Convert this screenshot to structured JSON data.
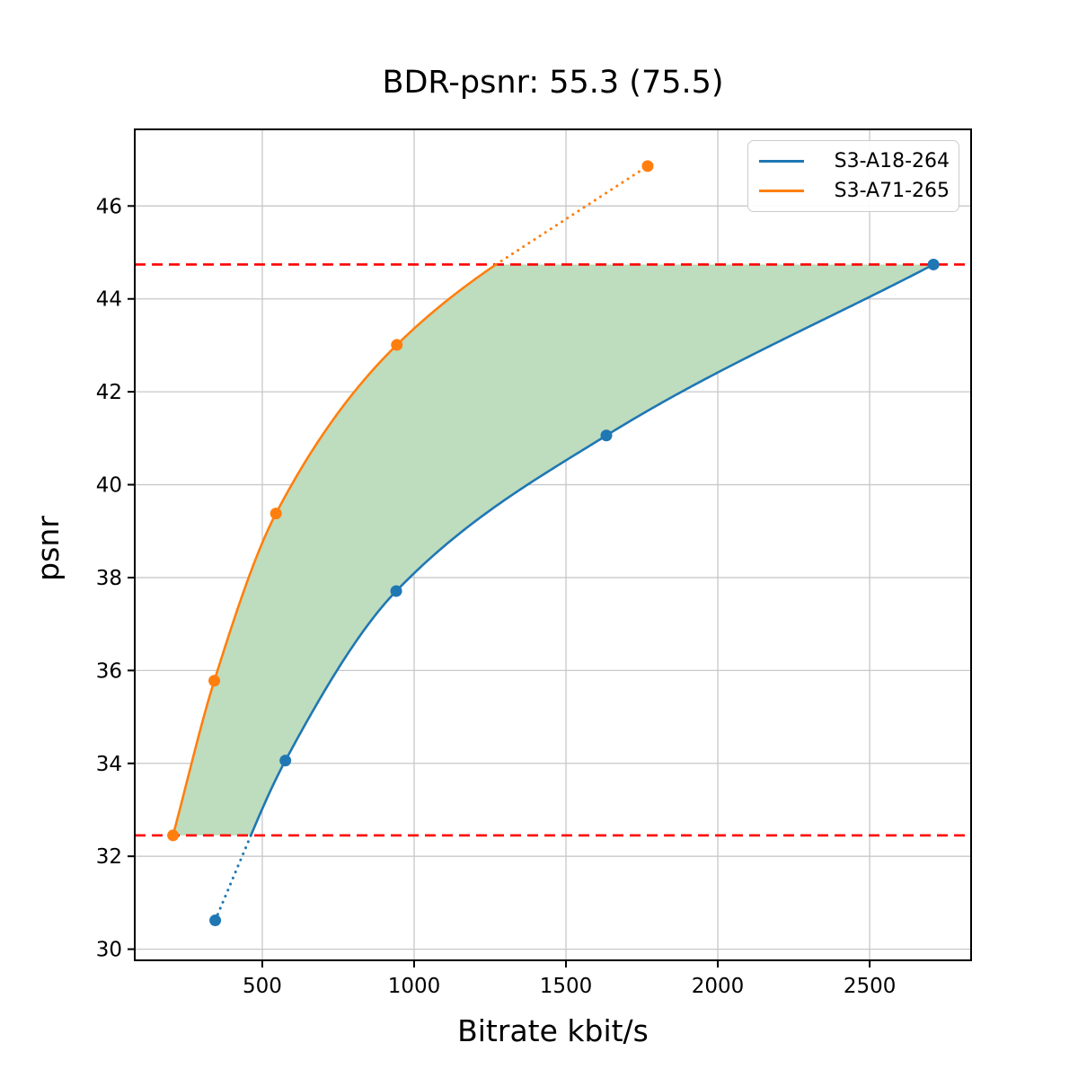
{
  "title": "BDR-psnr: 55.3 (75.5)",
  "chart_data": {
    "type": "line",
    "title": "BDR-psnr: 55.3 (75.5)",
    "xlabel": "Bitrate kbit/s",
    "ylabel": "psnr",
    "xlim": [
      80,
      2834
    ],
    "ylim": [
      29.76,
      47.65
    ],
    "xticks": [
      500,
      1000,
      1500,
      2000,
      2500
    ],
    "yticks": [
      30,
      32,
      34,
      36,
      38,
      40,
      42,
      44,
      46
    ],
    "grid": true,
    "legend_position": "upper right",
    "series": [
      {
        "name": "S3-A18-264",
        "color": "#1f77b4",
        "points": [
          [
            345,
            30.62
          ],
          [
            576,
            34.06
          ],
          [
            941,
            37.71
          ],
          [
            1633,
            41.06
          ],
          [
            2710,
            44.74
          ]
        ],
        "dotted_segment": "below-overlap"
      },
      {
        "name": "S3-A71-265",
        "color": "#ff7f0e",
        "points": [
          [
            206,
            32.45
          ],
          [
            342,
            35.78
          ],
          [
            545,
            39.38
          ],
          [
            943,
            43.01
          ],
          [
            1769,
            46.86
          ]
        ],
        "dotted_segment": "above-overlap"
      }
    ],
    "overlap_hlines": {
      "values": [
        32.45,
        44.74
      ],
      "color": "#ff0000",
      "style": "dashed"
    },
    "shaded_region": {
      "color": "#bedcbe",
      "between": [
        "S3-A71-265",
        "S3-A18-264"
      ]
    },
    "grid_color": "#c8c8c8",
    "axis_color": "#000000"
  }
}
